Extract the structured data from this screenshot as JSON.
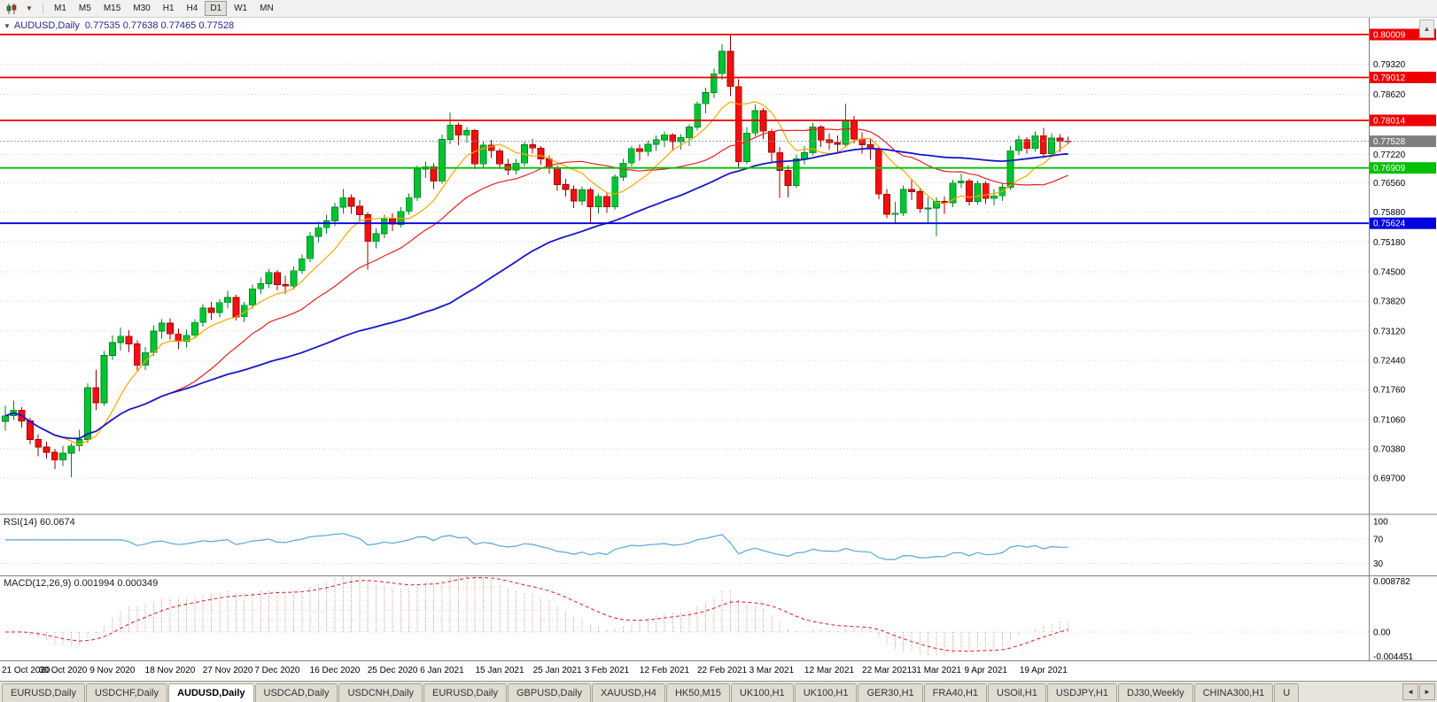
{
  "toolbar": {
    "timeframes": [
      "M1",
      "M5",
      "M15",
      "M30",
      "H1",
      "H4",
      "D1",
      "W1",
      "MN"
    ],
    "active_timeframe": "D1"
  },
  "icons": {
    "chart_type_glyph": "▮▯",
    "dropdown_caret": "▼",
    "collapse_arrow": "▼",
    "scroll_up": "▲",
    "tab_prev": "◄",
    "tab_next": "►"
  },
  "chart": {
    "symbol_title": "AUDUSD,Daily",
    "ohlc_text": "0.77535 0.77638 0.77465 0.77528"
  },
  "rsi": {
    "title": "RSI(14) 60.0674",
    "value": "60.0674",
    "period": 14,
    "levels": [
      {
        "label": "100",
        "value": 100,
        "line": false
      },
      {
        "label": "70",
        "value": 70,
        "line": true
      },
      {
        "label": "30",
        "value": 30,
        "line": true
      }
    ],
    "scale": {
      "max": 110,
      "min": 10
    },
    "color": "#58a6dc"
  },
  "macd": {
    "title": "MACD(12,26,9) 0.001994 0.000349",
    "main_value": "0.001994",
    "signal_value": "0.000349",
    "fast": 12,
    "slow": 26,
    "signal": 9,
    "levels": [
      {
        "label": "0.008782",
        "value": 0.008782
      },
      {
        "label": "0.00",
        "value": 0
      },
      {
        "label": "-0.004451",
        "value": -0.004451
      }
    ],
    "scale": {
      "max": 0.008782,
      "min": -0.004451
    },
    "histogram_color": "#c98f8f",
    "signal_color": "#e03030"
  },
  "tabs": {
    "items": [
      "EURUSD,Daily",
      "USDCHF,Daily",
      "AUDUSD,Daily",
      "USDCAD,Daily",
      "USDCNH,Daily",
      "EURUSD,Daily",
      "GBPUSD,Daily",
      "XAUUSD,H4",
      "HK50,M15",
      "UK100,H1",
      "UK100,H1",
      "GER30,H1",
      "FRA40,H1",
      "USOil,H1",
      "USDJPY,H1",
      "DJ30,Weekly",
      "CHINA300,H1",
      "U"
    ],
    "active_index": 2
  },
  "chart_data": {
    "type": "candlestick",
    "symbol": "AUDUSD",
    "timeframe": "Daily",
    "current_bar": {
      "open": 0.77535,
      "high": 0.77638,
      "low": 0.77465,
      "close": 0.77528
    },
    "price_scale": {
      "max": 0.804,
      "min": 0.6888
    },
    "y_ticks": [
      {
        "label": "0.79320",
        "value": 0.7932
      },
      {
        "label": "0.78620",
        "value": 0.7862
      },
      {
        "label": "0.77220",
        "value": 0.7722
      },
      {
        "label": "0.76560",
        "value": 0.7656
      },
      {
        "label": "0.75880",
        "value": 0.7588
      },
      {
        "label": "0.75180",
        "value": 0.7518
      },
      {
        "label": "0.74500",
        "value": 0.745
      },
      {
        "label": "0.73820",
        "value": 0.7382
      },
      {
        "label": "0.73120",
        "value": 0.7312
      },
      {
        "label": "0.72440",
        "value": 0.7244
      },
      {
        "label": "0.71760",
        "value": 0.7176
      },
      {
        "label": "0.71060",
        "value": 0.7106
      },
      {
        "label": "0.70380",
        "value": 0.7038
      },
      {
        "label": "0.69700",
        "value": 0.697
      }
    ],
    "x_labels": [
      {
        "label": "21 Oct 2020",
        "index": 0
      },
      {
        "label": "30 Oct 2020",
        "index": 7
      },
      {
        "label": "9 Nov 2020",
        "index": 13
      },
      {
        "label": "18 Nov 2020",
        "index": 20
      },
      {
        "label": "27 Nov 2020",
        "index": 27
      },
      {
        "label": "7 Dec 2020",
        "index": 33
      },
      {
        "label": "16 Dec 2020",
        "index": 40
      },
      {
        "label": "25 Dec 2020",
        "index": 47
      },
      {
        "label": "6 Jan 2021",
        "index": 53
      },
      {
        "label": "15 Jan 2021",
        "index": 60
      },
      {
        "label": "25 Jan 2021",
        "index": 67
      },
      {
        "label": "3 Feb 2021",
        "index": 73
      },
      {
        "label": "12 Feb 2021",
        "index": 80
      },
      {
        "label": "22 Feb 2021",
        "index": 87
      },
      {
        "label": "3 Mar 2021",
        "index": 93
      },
      {
        "label": "12 Mar 2021",
        "index": 100
      },
      {
        "label": "22 Mar 2021",
        "index": 107
      },
      {
        "label": "31 Mar 2021",
        "index": 113
      },
      {
        "label": "9 Apr 2021",
        "index": 119
      },
      {
        "label": "19 Apr 2021",
        "index": 126
      }
    ],
    "hlines": [
      {
        "value": 0.80009,
        "label": "0.80009",
        "color": "#ee0000"
      },
      {
        "value": 0.79012,
        "label": "0.79012",
        "color": "#ee0000"
      },
      {
        "value": 0.78014,
        "label": "0.78014",
        "color": "#ee0000"
      },
      {
        "value": 0.76909,
        "label": "0.76909",
        "color": "#00c000"
      },
      {
        "value": 0.75624,
        "label": "0.75624",
        "color": "#0000e0"
      }
    ],
    "bid": {
      "value": 0.77528,
      "label": "0.77528",
      "tag_color": "#7f7f7f"
    },
    "moving_averages": [
      {
        "period": 8,
        "color": "#f5a800",
        "width": 1.2
      },
      {
        "period": 21,
        "color": "#e82020",
        "width": 1.2
      },
      {
        "period": 55,
        "color": "#1616c8",
        "width": 1.8
      }
    ],
    "colors": {
      "up": "#00c432",
      "up_border": "#008224",
      "down": "#f01010",
      "down_border": "#9e0000",
      "grid": "#d2d2d2",
      "axis_text": "#000000",
      "bid_line": "#999999",
      "divider": "#808080"
    },
    "candles": [
      [
        0.7102,
        0.7138,
        0.708,
        0.7115
      ],
      [
        0.7115,
        0.715,
        0.7105,
        0.7128
      ],
      [
        0.7128,
        0.7135,
        0.7088,
        0.7103
      ],
      [
        0.7103,
        0.711,
        0.7048,
        0.706
      ],
      [
        0.706,
        0.7072,
        0.7021,
        0.7042
      ],
      [
        0.7042,
        0.7055,
        0.7016,
        0.703
      ],
      [
        0.703,
        0.7038,
        0.6991,
        0.7012
      ],
      [
        0.7012,
        0.7045,
        0.6998,
        0.7028
      ],
      [
        0.7028,
        0.7052,
        0.6972,
        0.7045
      ],
      [
        0.7045,
        0.7082,
        0.7032,
        0.706
      ],
      [
        0.706,
        0.719,
        0.7052,
        0.718
      ],
      [
        0.718,
        0.7222,
        0.7128,
        0.7145
      ],
      [
        0.7145,
        0.7265,
        0.7138,
        0.7255
      ],
      [
        0.7255,
        0.7302,
        0.7245,
        0.7285
      ],
      [
        0.7285,
        0.732,
        0.7266,
        0.73
      ],
      [
        0.73,
        0.7314,
        0.7262,
        0.7282
      ],
      [
        0.7282,
        0.729,
        0.722,
        0.7232
      ],
      [
        0.7232,
        0.7275,
        0.7221,
        0.7262
      ],
      [
        0.7262,
        0.7325,
        0.7254,
        0.7312
      ],
      [
        0.7312,
        0.734,
        0.7294,
        0.733
      ],
      [
        0.733,
        0.7342,
        0.7292,
        0.7305
      ],
      [
        0.7305,
        0.7318,
        0.727,
        0.7288
      ],
      [
        0.7288,
        0.7315,
        0.7274,
        0.7302
      ],
      [
        0.7302,
        0.734,
        0.7294,
        0.7332
      ],
      [
        0.7332,
        0.7374,
        0.7322,
        0.7365
      ],
      [
        0.7365,
        0.738,
        0.7338,
        0.7355
      ],
      [
        0.7355,
        0.7386,
        0.7344,
        0.7378
      ],
      [
        0.7378,
        0.7405,
        0.7364,
        0.739
      ],
      [
        0.739,
        0.7396,
        0.7336,
        0.7345
      ],
      [
        0.7345,
        0.738,
        0.7332,
        0.7372
      ],
      [
        0.7372,
        0.742,
        0.7364,
        0.741
      ],
      [
        0.741,
        0.7436,
        0.7398,
        0.7422
      ],
      [
        0.7422,
        0.7456,
        0.7412,
        0.7448
      ],
      [
        0.7448,
        0.7454,
        0.7406,
        0.742
      ],
      [
        0.742,
        0.744,
        0.7398,
        0.7416
      ],
      [
        0.7416,
        0.7462,
        0.7408,
        0.7452
      ],
      [
        0.7452,
        0.749,
        0.7444,
        0.748
      ],
      [
        0.748,
        0.7542,
        0.7472,
        0.7532
      ],
      [
        0.7532,
        0.7566,
        0.7518,
        0.7552
      ],
      [
        0.7552,
        0.7582,
        0.7538,
        0.7568
      ],
      [
        0.7568,
        0.761,
        0.7556,
        0.76
      ],
      [
        0.76,
        0.7642,
        0.7584,
        0.7622
      ],
      [
        0.7622,
        0.763,
        0.7584,
        0.7602
      ],
      [
        0.7602,
        0.7616,
        0.7568,
        0.7582
      ],
      [
        0.7582,
        0.7588,
        0.7455,
        0.752
      ],
      [
        0.752,
        0.755,
        0.7504,
        0.7538
      ],
      [
        0.7538,
        0.7582,
        0.7528,
        0.7572
      ],
      [
        0.7572,
        0.7585,
        0.7544,
        0.756
      ],
      [
        0.756,
        0.76,
        0.7552,
        0.759
      ],
      [
        0.759,
        0.7632,
        0.7582,
        0.7622
      ],
      [
        0.7622,
        0.7696,
        0.7614,
        0.7688
      ],
      [
        0.7688,
        0.7706,
        0.7668,
        0.7694
      ],
      [
        0.7694,
        0.7702,
        0.7642,
        0.766
      ],
      [
        0.766,
        0.7768,
        0.7654,
        0.7757
      ],
      [
        0.7757,
        0.782,
        0.7746,
        0.779
      ],
      [
        0.779,
        0.7796,
        0.7744,
        0.7767
      ],
      [
        0.7767,
        0.7786,
        0.775,
        0.7778
      ],
      [
        0.7778,
        0.7782,
        0.7688,
        0.77
      ],
      [
        0.77,
        0.7752,
        0.7692,
        0.7744
      ],
      [
        0.7744,
        0.7756,
        0.7714,
        0.7731
      ],
      [
        0.7731,
        0.7736,
        0.7688,
        0.77
      ],
      [
        0.77,
        0.7712,
        0.7674,
        0.7686
      ],
      [
        0.7686,
        0.7712,
        0.7676,
        0.7702
      ],
      [
        0.7702,
        0.7752,
        0.7694,
        0.7745
      ],
      [
        0.7745,
        0.7758,
        0.7724,
        0.7737
      ],
      [
        0.7737,
        0.7742,
        0.7698,
        0.7712
      ],
      [
        0.7712,
        0.772,
        0.7678,
        0.769
      ],
      [
        0.769,
        0.7696,
        0.7638,
        0.7652
      ],
      [
        0.7652,
        0.7666,
        0.7624,
        0.7641
      ],
      [
        0.7641,
        0.765,
        0.7598,
        0.7614
      ],
      [
        0.7614,
        0.7648,
        0.7604,
        0.764
      ],
      [
        0.764,
        0.7645,
        0.7564,
        0.7601
      ],
      [
        0.7601,
        0.7632,
        0.7584,
        0.7625
      ],
      [
        0.7625,
        0.7635,
        0.7586,
        0.7601
      ],
      [
        0.7601,
        0.7676,
        0.7594,
        0.767
      ],
      [
        0.767,
        0.7712,
        0.766,
        0.7702
      ],
      [
        0.7702,
        0.7742,
        0.7694,
        0.7736
      ],
      [
        0.7736,
        0.7746,
        0.7708,
        0.7729
      ],
      [
        0.7729,
        0.7754,
        0.7718,
        0.7746
      ],
      [
        0.7746,
        0.7766,
        0.773,
        0.7756
      ],
      [
        0.7756,
        0.7776,
        0.774,
        0.7768
      ],
      [
        0.7768,
        0.7772,
        0.773,
        0.7752
      ],
      [
        0.7752,
        0.777,
        0.7734,
        0.7761
      ],
      [
        0.7761,
        0.7792,
        0.7742,
        0.7786
      ],
      [
        0.7786,
        0.7846,
        0.7778,
        0.784
      ],
      [
        0.784,
        0.7878,
        0.7818,
        0.7866
      ],
      [
        0.7866,
        0.7922,
        0.7854,
        0.791
      ],
      [
        0.791,
        0.7978,
        0.7896,
        0.7962
      ],
      [
        0.7962,
        0.8001,
        0.7858,
        0.788
      ],
      [
        0.788,
        0.7897,
        0.7692,
        0.7706
      ],
      [
        0.7706,
        0.7786,
        0.77,
        0.7772
      ],
      [
        0.7772,
        0.7838,
        0.7764,
        0.7824
      ],
      [
        0.7824,
        0.783,
        0.7758,
        0.7776
      ],
      [
        0.7776,
        0.7782,
        0.7704,
        0.7727
      ],
      [
        0.7727,
        0.774,
        0.7621,
        0.7685
      ],
      [
        0.7685,
        0.7696,
        0.7622,
        0.765
      ],
      [
        0.765,
        0.7722,
        0.7644,
        0.7712
      ],
      [
        0.7712,
        0.7742,
        0.7698,
        0.7726
      ],
      [
        0.7726,
        0.7796,
        0.772,
        0.7786
      ],
      [
        0.7786,
        0.779,
        0.774,
        0.7756
      ],
      [
        0.7756,
        0.7772,
        0.7734,
        0.775
      ],
      [
        0.775,
        0.7766,
        0.7724,
        0.7746
      ],
      [
        0.7746,
        0.784,
        0.774,
        0.78
      ],
      [
        0.78,
        0.7812,
        0.7748,
        0.7758
      ],
      [
        0.7758,
        0.7774,
        0.7724,
        0.7745
      ],
      [
        0.7745,
        0.776,
        0.771,
        0.7736
      ],
      [
        0.7736,
        0.7742,
        0.7618,
        0.763
      ],
      [
        0.763,
        0.7642,
        0.7574,
        0.7583
      ],
      [
        0.7583,
        0.7612,
        0.7562,
        0.7586
      ],
      [
        0.7586,
        0.765,
        0.7579,
        0.7641
      ],
      [
        0.7641,
        0.7666,
        0.7616,
        0.7636
      ],
      [
        0.7636,
        0.7642,
        0.7586,
        0.7596
      ],
      [
        0.7596,
        0.7622,
        0.7563,
        0.7598
      ],
      [
        0.7598,
        0.7622,
        0.7532,
        0.7613
      ],
      [
        0.7613,
        0.7624,
        0.7584,
        0.761
      ],
      [
        0.761,
        0.7664,
        0.76,
        0.7656
      ],
      [
        0.7656,
        0.7678,
        0.7644,
        0.7661
      ],
      [
        0.7661,
        0.7666,
        0.7604,
        0.7613
      ],
      [
        0.7613,
        0.7662,
        0.7606,
        0.7655
      ],
      [
        0.7655,
        0.766,
        0.7608,
        0.762
      ],
      [
        0.762,
        0.7642,
        0.7604,
        0.7626
      ],
      [
        0.7626,
        0.7656,
        0.7614,
        0.7646
      ],
      [
        0.7646,
        0.7742,
        0.764,
        0.7731
      ],
      [
        0.7731,
        0.7766,
        0.772,
        0.7756
      ],
      [
        0.7756,
        0.7762,
        0.7724,
        0.7736
      ],
      [
        0.7736,
        0.7776,
        0.7728,
        0.7766
      ],
      [
        0.7766,
        0.7784,
        0.7714,
        0.7724
      ],
      [
        0.7724,
        0.7772,
        0.7716,
        0.776
      ],
      [
        0.776,
        0.777,
        0.7728,
        0.7753
      ],
      [
        0.77535,
        0.77638,
        0.77465,
        0.77528
      ]
    ]
  }
}
